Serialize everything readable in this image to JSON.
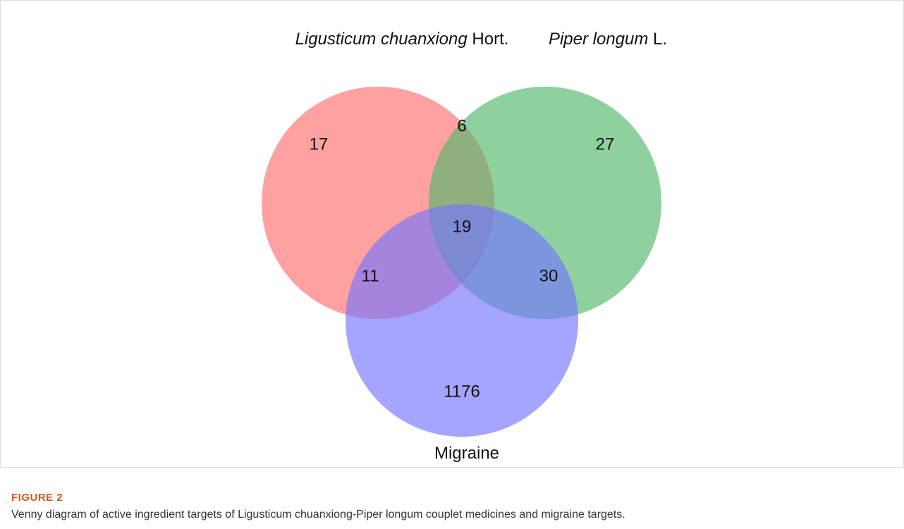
{
  "chart_data": {
    "type": "venn",
    "sets": [
      {
        "label_parts": [
          "Ligusticum chuanxiong",
          " Hort."
        ],
        "italic": [
          true,
          false
        ],
        "color": "#ff6e6e"
      },
      {
        "label_parts": [
          "Piper longum",
          " L."
        ],
        "italic": [
          true,
          false
        ],
        "color": "#52b86c"
      },
      {
        "label_parts": [
          "Migraine"
        ],
        "italic": [
          false
        ],
        "color": "#7474ff"
      }
    ],
    "regions": [
      {
        "sets": [
          0
        ],
        "value": 17
      },
      {
        "sets": [
          0,
          1
        ],
        "value": 6
      },
      {
        "sets": [
          1
        ],
        "value": 27
      },
      {
        "sets": [
          0,
          1,
          2
        ],
        "value": 19
      },
      {
        "sets": [
          0,
          2
        ],
        "value": 11
      },
      {
        "sets": [
          1,
          2
        ],
        "value": 30
      },
      {
        "sets": [
          2
        ],
        "value": 1176
      }
    ]
  },
  "figure": {
    "label": "FIGURE 2",
    "caption": "Venny diagram of active ingredient targets of Ligusticum chuanxiong-Piper longum couplet medicines and migraine targets."
  }
}
